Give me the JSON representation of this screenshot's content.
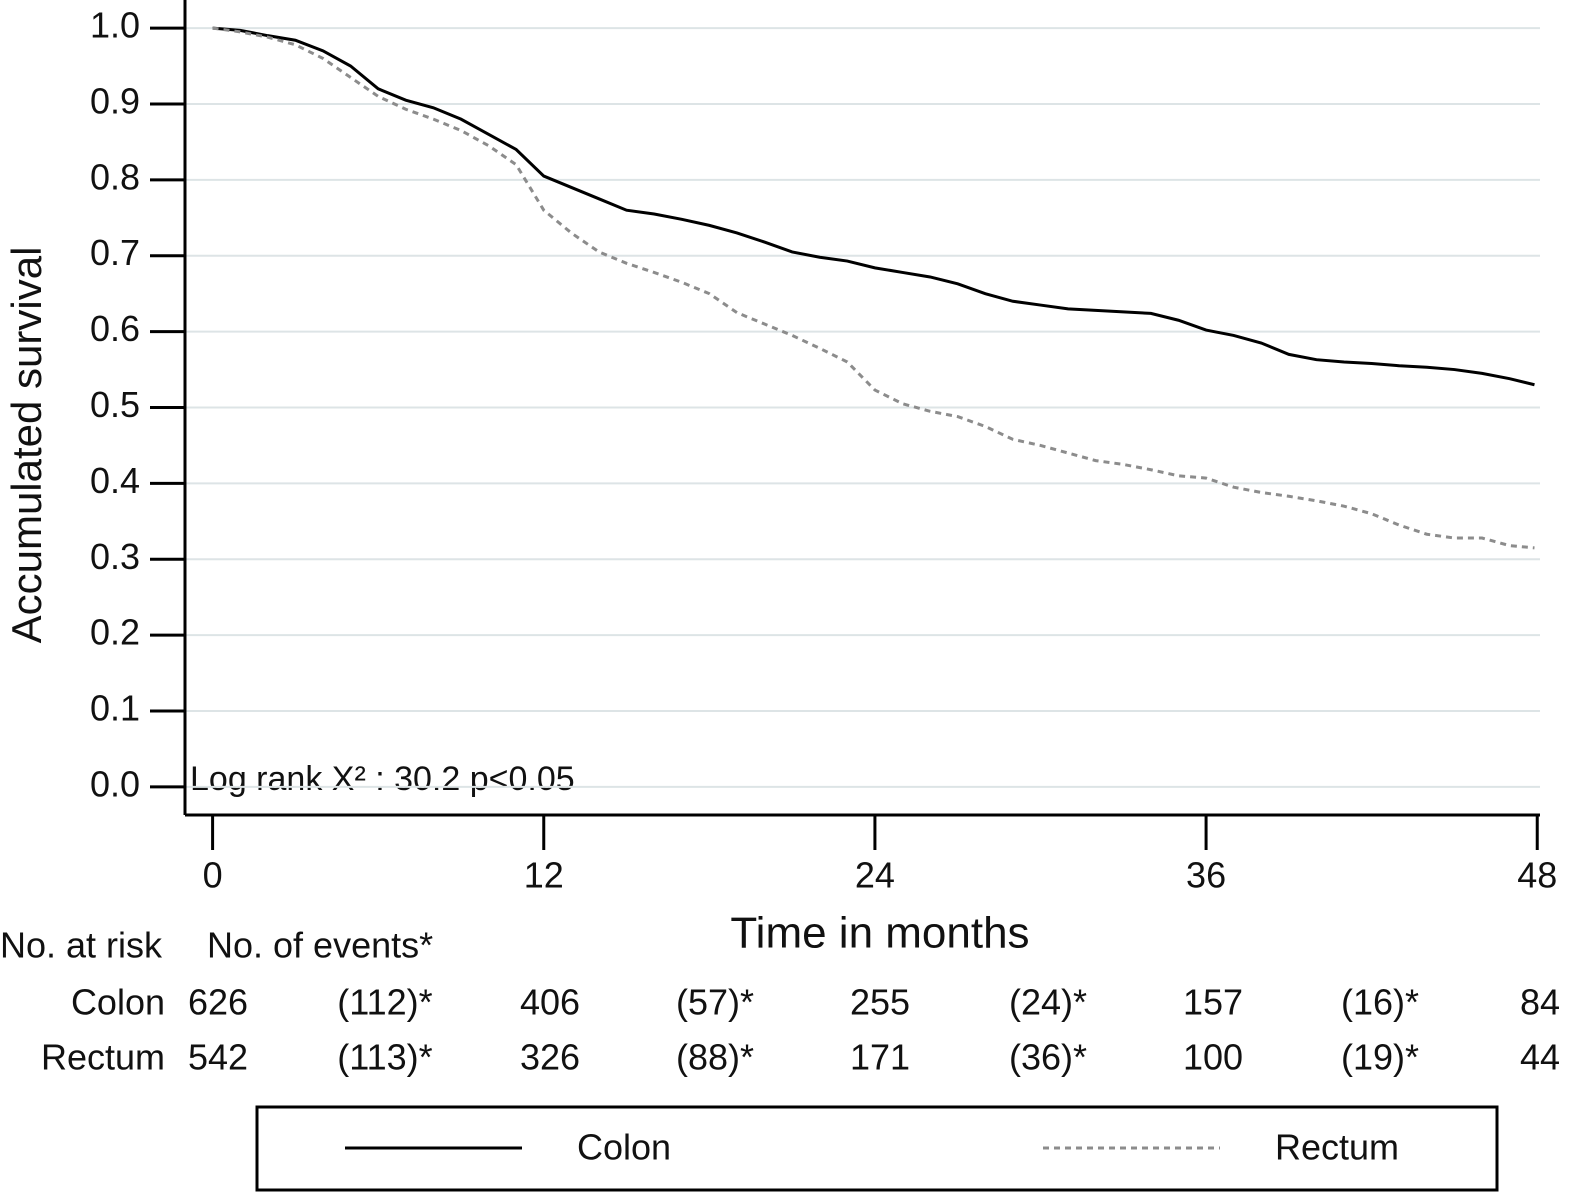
{
  "chart_data": {
    "type": "line",
    "step": true,
    "x_label": "Time in months",
    "y_label": "Accumulated survival",
    "annotation": "Log rank X² : 30.2  p<0.05",
    "xlim": [
      -1,
      48.1
    ],
    "xticks": [
      0,
      12,
      24,
      36,
      48
    ],
    "ylim": [
      -0.037,
      1.037
    ],
    "yticks": [
      {
        "value": 0,
        "label": "0.0"
      },
      0.1,
      0.2,
      0.3,
      0.4,
      0.5,
      0.6,
      0.7,
      0.8,
      0.9,
      {
        "value": 1,
        "label": "1.0"
      }
    ],
    "grid": true,
    "legend": "below",
    "x": [
      0,
      1,
      2,
      3,
      4,
      5,
      6,
      7,
      8,
      9,
      10,
      11,
      12,
      13,
      14,
      15,
      16,
      17,
      18,
      19,
      20,
      21,
      22,
      23,
      24,
      25,
      26,
      27,
      28,
      29,
      30,
      31,
      32,
      33,
      34,
      35,
      36,
      37,
      38,
      39,
      40,
      41,
      42,
      43,
      44,
      45,
      46,
      47,
      47.9
    ],
    "series": [
      {
        "name": "Colon",
        "color": "#000000",
        "dash": "solid",
        "values": [
          1.0,
          0.997,
          0.99,
          0.984,
          0.97,
          0.95,
          0.92,
          0.905,
          0.895,
          0.88,
          0.86,
          0.84,
          0.805,
          0.79,
          0.775,
          0.76,
          0.755,
          0.748,
          0.74,
          0.73,
          0.718,
          0.705,
          0.698,
          0.693,
          0.684,
          0.678,
          0.672,
          0.663,
          0.65,
          0.64,
          0.635,
          0.63,
          0.628,
          0.626,
          0.624,
          0.615,
          0.602,
          0.595,
          0.585,
          0.57,
          0.563,
          0.56,
          0.558,
          0.555,
          0.553,
          0.55,
          0.545,
          0.538,
          0.53
        ]
      },
      {
        "name": "Rectum",
        "color": "#8c8c8c",
        "dash": "dotted",
        "values": [
          1.0,
          0.995,
          0.988,
          0.978,
          0.96,
          0.935,
          0.91,
          0.893,
          0.88,
          0.865,
          0.845,
          0.82,
          0.76,
          0.73,
          0.705,
          0.69,
          0.678,
          0.665,
          0.65,
          0.625,
          0.61,
          0.595,
          0.578,
          0.56,
          0.523,
          0.505,
          0.495,
          0.488,
          0.475,
          0.458,
          0.45,
          0.44,
          0.43,
          0.425,
          0.418,
          0.41,
          0.407,
          0.395,
          0.388,
          0.383,
          0.377,
          0.37,
          0.36,
          0.345,
          0.333,
          0.328,
          0.328,
          0.318,
          0.315
        ]
      }
    ],
    "risk_table": {
      "header": [
        "No. at risk",
        "No. of events*"
      ],
      "rows": [
        {
          "name": "Colon",
          "cells": [
            626,
            "(112)*",
            406,
            "(57)*",
            255,
            "(24)*",
            157,
            "(16)*",
            84
          ]
        },
        {
          "name": "Rectum",
          "cells": [
            542,
            "(113)*",
            326,
            "(88)*",
            171,
            "(36)*",
            100,
            "(19)*",
            44
          ]
        }
      ]
    }
  }
}
